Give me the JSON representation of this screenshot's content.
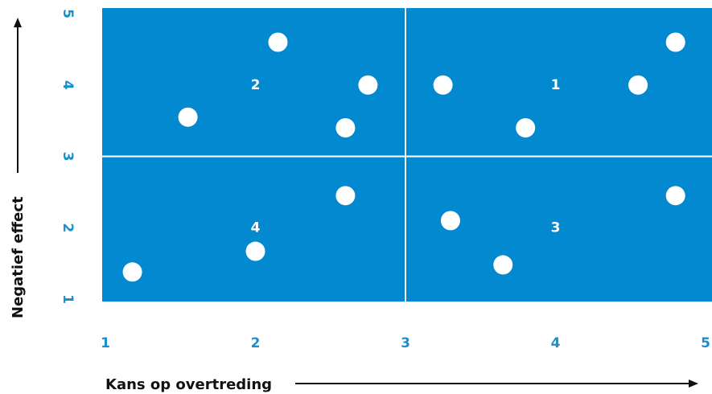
{
  "chart_data": {
    "type": "scatter",
    "xlabel": "Kans op overtreding",
    "ylabel": "Negatief effect",
    "xlim": [
      1,
      5
    ],
    "ylim": [
      1,
      5
    ],
    "x_ticks": [
      "1",
      "2",
      "3",
      "4",
      "5"
    ],
    "y_ticks": [
      "1",
      "2",
      "3",
      "4",
      "5"
    ],
    "grid": false,
    "divider_lines": {
      "x": 3,
      "y": 3
    },
    "quadrant_labels": [
      {
        "text": "1",
        "x": 4.0,
        "y": 4.0
      },
      {
        "text": "2",
        "x": 2.0,
        "y": 4.0
      },
      {
        "text": "3",
        "x": 4.0,
        "y": 2.0
      },
      {
        "text": "4",
        "x": 2.0,
        "y": 2.0
      }
    ],
    "points": [
      {
        "x": 2.15,
        "y": 4.6
      },
      {
        "x": 1.55,
        "y": 3.55
      },
      {
        "x": 2.75,
        "y": 4.0
      },
      {
        "x": 2.6,
        "y": 3.4
      },
      {
        "x": 3.25,
        "y": 4.0
      },
      {
        "x": 3.8,
        "y": 3.4
      },
      {
        "x": 4.55,
        "y": 4.0
      },
      {
        "x": 4.8,
        "y": 4.6
      },
      {
        "x": 1.18,
        "y": 1.38
      },
      {
        "x": 2.0,
        "y": 1.67
      },
      {
        "x": 2.6,
        "y": 2.45
      },
      {
        "x": 3.3,
        "y": 2.1
      },
      {
        "x": 3.65,
        "y": 1.48
      },
      {
        "x": 4.8,
        "y": 2.45
      }
    ],
    "colors": {
      "plot_background": "#0289cf",
      "point": "#ffffff",
      "divider": "#ffffff",
      "tick_label": "#1a8fd0",
      "axis_title": "#111111"
    }
  }
}
